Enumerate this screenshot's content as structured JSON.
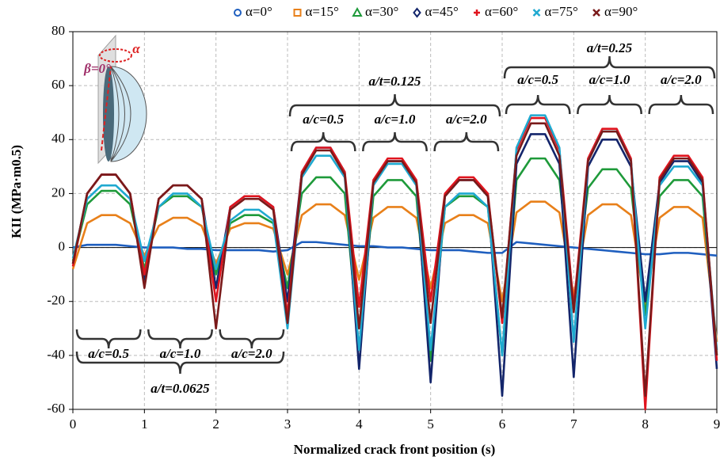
{
  "chart_data": {
    "type": "line",
    "y_label": "KII (MPa·m0.5)",
    "x_label": "Normalized crack front position (s)",
    "x": [
      0,
      0.2,
      0.4,
      0.6,
      0.8,
      1,
      1.2,
      1.4,
      1.6,
      1.8,
      2,
      2.2,
      2.4,
      2.6,
      2.8,
      3,
      3.2,
      3.4,
      3.6,
      3.8,
      4,
      4.2,
      4.4,
      4.6,
      4.8,
      5,
      5.2,
      5.4,
      5.6,
      5.8,
      6,
      6.2,
      6.4,
      6.6,
      6.8,
      7,
      7.2,
      7.4,
      7.6,
      7.8,
      8,
      8.2,
      8.4,
      8.6,
      8.8,
      9
    ],
    "xlim": [
      0,
      9
    ],
    "xticks": [
      0,
      1,
      2,
      3,
      4,
      5,
      6,
      7,
      8,
      9
    ],
    "ylim": [
      -60,
      80
    ],
    "yticks": [
      -60,
      -40,
      -20,
      0,
      20,
      40,
      60,
      80
    ],
    "grid": true,
    "legend": "top",
    "series": [
      {
        "name": "α=0°",
        "color": "#1f5fbf",
        "marker": "circle",
        "values": [
          0,
          1,
          1,
          1,
          0.5,
          0,
          0,
          0,
          -0.5,
          -0.5,
          -1,
          -1,
          -1,
          -1,
          -1.5,
          -1,
          2,
          2,
          1.5,
          1,
          0.5,
          0.5,
          0,
          0,
          -0.5,
          -1,
          -1,
          -1,
          -1.5,
          -2,
          -2,
          2,
          1.5,
          1,
          0.5,
          0,
          -0.5,
          -1,
          -1.5,
          -2,
          -2.5,
          -2.5,
          -2,
          -2,
          -2.5,
          -3
        ]
      },
      {
        "name": "α=15°",
        "color": "#e8801a",
        "marker": "square",
        "values": [
          -8,
          9,
          12,
          12,
          9,
          -3,
          8,
          11,
          11,
          8,
          -6,
          7,
          9,
          9,
          7,
          -10,
          12,
          16,
          16,
          12,
          -12,
          11,
          15,
          15,
          11,
          -15,
          9,
          12,
          12,
          9,
          -20,
          13,
          17,
          17,
          13,
          -18,
          12,
          16,
          16,
          12,
          -22,
          11,
          15,
          15,
          11,
          -35
        ]
      },
      {
        "name": "α=30°",
        "color": "#1e9a3a",
        "marker": "triangle",
        "values": [
          -5,
          16,
          21,
          21,
          16,
          -8,
          15,
          19,
          19,
          15,
          -10,
          9,
          12,
          12,
          9,
          -15,
          20,
          26,
          26,
          20,
          -38,
          19,
          25,
          25,
          19,
          -42,
          15,
          19,
          19,
          15,
          -40,
          25,
          33,
          33,
          25,
          -22,
          22,
          29,
          29,
          22,
          -25,
          19,
          25,
          25,
          19,
          -40
        ]
      },
      {
        "name": "α=45°",
        "color": "#13256b",
        "marker": "diamond",
        "values": [
          -6,
          20,
          27,
          27,
          20,
          -12,
          18,
          23,
          23,
          18,
          -15,
          15,
          19,
          19,
          15,
          -20,
          28,
          37,
          37,
          28,
          -45,
          24,
          32,
          32,
          24,
          -50,
          19,
          25,
          25,
          19,
          -55,
          31,
          42,
          42,
          31,
          -48,
          30,
          40,
          40,
          30,
          -20,
          24,
          32,
          32,
          24,
          -45
        ]
      },
      {
        "name": "α=60°",
        "color": "#e0141e",
        "marker": "plus",
        "values": [
          -7,
          20,
          27,
          27,
          20,
          -10,
          18,
          23,
          23,
          18,
          -20,
          15,
          19,
          19,
          15,
          -25,
          28,
          37,
          37,
          28,
          -22,
          25,
          33,
          33,
          25,
          -20,
          20,
          26,
          26,
          20,
          -28,
          36,
          48,
          48,
          36,
          -22,
          33,
          44,
          44,
          33,
          -60,
          26,
          34,
          34,
          26,
          -42
        ]
      },
      {
        "name": "α=75°",
        "color": "#1fa9d0",
        "marker": "cross",
        "values": [
          -4,
          18,
          23,
          23,
          18,
          -5,
          15,
          20,
          20,
          15,
          -8,
          10,
          14,
          14,
          10,
          -30,
          26,
          34,
          34,
          26,
          -38,
          23,
          31,
          31,
          23,
          -38,
          15,
          20,
          20,
          15,
          -40,
          37,
          49,
          49,
          37,
          -35,
          32,
          43,
          43,
          32,
          -30,
          23,
          30,
          30,
          23,
          -38
        ]
      },
      {
        "name": "α=90°",
        "color": "#7a1a1a",
        "marker": "cross",
        "values": [
          -6,
          20,
          27,
          27,
          20,
          -15,
          18,
          23,
          23,
          18,
          -30,
          14,
          18,
          18,
          14,
          -28,
          27,
          36,
          36,
          27,
          -30,
          24,
          32,
          32,
          24,
          -28,
          19,
          25,
          25,
          19,
          -26,
          34,
          46,
          46,
          34,
          -24,
          32,
          43,
          43,
          32,
          -55,
          25,
          33,
          33,
          25,
          -40
        ]
      }
    ],
    "annotations": [
      "a/t=0.25",
      "a/c=0.5",
      "a/c=1.0",
      "a/c=2.0",
      "a/t=0.125",
      "a/c=0.5",
      "a/c=1.0",
      "a/c=2.0",
      "a/c=0.5",
      "a/c=1.0",
      "a/c=2.0",
      "a/t=0.0625",
      "β=0°",
      "α"
    ]
  }
}
